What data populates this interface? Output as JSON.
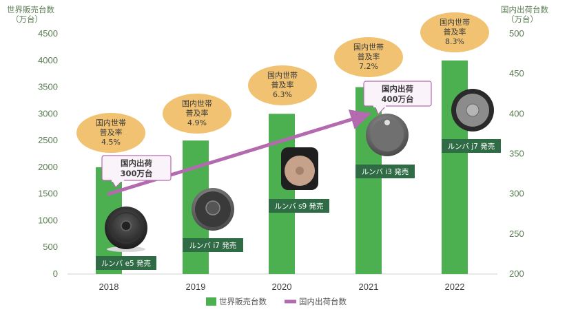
{
  "chart_data": {
    "type": "bar",
    "categories": [
      "2018",
      "2019",
      "2020",
      "2021",
      "2022"
    ],
    "series": [
      {
        "name": "世界販売台数",
        "axis": "left",
        "values": [
          2000,
          2500,
          3000,
          3500,
          4000
        ],
        "color": "#4caf50"
      },
      {
        "name": "国内出荷台数",
        "axis": "right",
        "type": "line",
        "values": [
          300,
          null,
          null,
          400,
          null
        ],
        "color": "#b36aaf"
      }
    ],
    "left_axis": {
      "title_line1": "世界販売台数",
      "title_line2": "（万台）",
      "ylim": [
        0,
        4500
      ],
      "ticks": [
        0,
        500,
        1000,
        1500,
        2000,
        2500,
        3000,
        3500,
        4000,
        4500
      ]
    },
    "right_axis": {
      "title_line1": "国内出荷台数",
      "title_line2": "（万台）",
      "ylim": [
        200,
        500
      ],
      "ticks": [
        200,
        250,
        300,
        350,
        400,
        450,
        500
      ]
    },
    "household_bubbles": [
      {
        "year": "2018",
        "line1": "国内世帯",
        "line2": "普及率",
        "line3": "4.5%"
      },
      {
        "year": "2019",
        "line1": "国内世帯",
        "line2": "普及率",
        "line3": "4.9%"
      },
      {
        "year": "2020",
        "line1": "国内世帯",
        "line2": "普及率",
        "line3": "6.3%"
      },
      {
        "year": "2021",
        "line1": "国内世帯",
        "line2": "普及率",
        "line3": "7.2%"
      },
      {
        "year": "2022",
        "line1": "国内世帯",
        "line2": "普及率",
        "line3": "8.3%"
      }
    ],
    "model_labels": [
      {
        "year": "2018",
        "text": "ルンバ e5 発売"
      },
      {
        "year": "2019",
        "text": "ルンバ i7 発売"
      },
      {
        "year": "2020",
        "text": "ルンバ s9 発売"
      },
      {
        "year": "2021",
        "text": "ルンバ i3 発売"
      },
      {
        "year": "2022",
        "text": "ルンバ j7 発売"
      }
    ],
    "callouts": [
      {
        "year": "2018",
        "line1": "国内出荷",
        "line2": "300万台"
      },
      {
        "year": "2021",
        "line1": "国内出荷",
        "line2": "400万台"
      }
    ],
    "colors": {
      "bar": "#4caf50",
      "line": "#b36aaf",
      "bubble": "#f0c271",
      "model_box": "#2f6b45",
      "axis_text": "#5a7d52"
    }
  },
  "legend": {
    "bar_label": "世界販売台数",
    "line_label": "国内出荷台数"
  }
}
